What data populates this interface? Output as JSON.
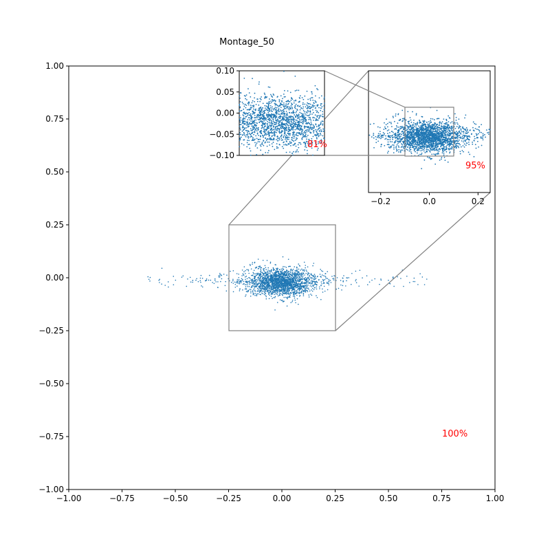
{
  "chart_data": {
    "type": "scatter",
    "title": "Montage_50",
    "xlabel": "",
    "ylabel": "",
    "grid": false,
    "marker_color": "#1f77b4",
    "zoom_box_color": "#808080",
    "annotation_color": "#ff0000",
    "main": {
      "xlim": [
        -1.0,
        1.0
      ],
      "ylim": [
        -1.0,
        1.0
      ],
      "xticks": [
        "−1.00",
        "−0.75",
        "−0.50",
        "−0.25",
        "0.00",
        "0.25",
        "0.50",
        "0.75",
        "1.00"
      ],
      "yticks": [
        "1.00",
        "0.75",
        "0.50",
        "0.25",
        "0.00",
        "−0.25",
        "−0.50",
        "−0.75",
        "−1.00"
      ],
      "annotation": "100%"
    },
    "inset_1": {
      "xlim": [
        -0.25,
        0.25
      ],
      "ylim": [
        -0.25,
        0.25
      ],
      "xticks": [
        "−0.2",
        "0.0",
        "0.2"
      ],
      "annotation": "95%"
    },
    "inset_2": {
      "xlim": [
        -0.1,
        0.1
      ],
      "ylim": [
        -0.1,
        0.1
      ],
      "yticks": [
        "0.10",
        "0.05",
        "0.00",
        "−0.05",
        "−0.10"
      ],
      "annotation": "81%"
    },
    "point_cloud": {
      "count": 2200,
      "center": [
        -0.01,
        -0.02
      ],
      "core_std": [
        0.075,
        0.035
      ],
      "tail_x_range": [
        -0.64,
        0.68
      ],
      "tail_y_std": 0.02
    }
  }
}
